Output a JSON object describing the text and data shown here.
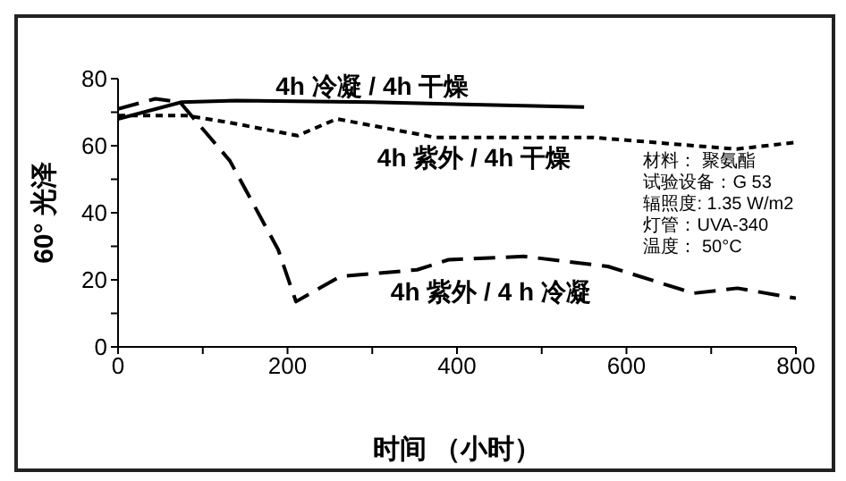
{
  "chart_data": {
    "type": "line",
    "xlabel": "时间 （小时）",
    "ylabel": "60° 光泽",
    "series": [
      {
        "name": "4h 冷凝 / 4h 干燥",
        "color": "#000000",
        "line_style": "solid",
        "x": [
          0,
          75,
          140,
          300,
          550
        ],
        "values": [
          68,
          73,
          73.5,
          73,
          71.5
        ]
      },
      {
        "name": "4h 紫外 / 4h 干燥",
        "color": "#000000",
        "line_style": "dotted",
        "x": [
          0,
          80,
          130,
          212,
          258,
          374,
          560,
          680,
          730,
          800
        ],
        "values": [
          69,
          69,
          67,
          63,
          68,
          62.5,
          62.5,
          60,
          59,
          61
        ]
      },
      {
        "name": "4h 紫外 / 4 h 冷凝",
        "color": "#000000",
        "line_style": "dashed",
        "x": [
          0,
          44,
          73,
          132,
          189,
          210,
          262,
          353,
          390,
          479,
          578,
          679,
          731,
          800
        ],
        "values": [
          71,
          74,
          73,
          55.5,
          29,
          13.5,
          21,
          23,
          26,
          27,
          24,
          16,
          17.5,
          14.5
        ]
      }
    ],
    "annotations": [
      "材料： 聚氨酯",
      "试验设备：G 53",
      "辐照度: 1.35 W/m2",
      "灯管：UVA-340",
      "温度： 50°C"
    ],
    "xlim": [
      0,
      800
    ],
    "xticks": [
      0,
      {
        "value": 100,
        "label": null
      },
      200,
      {
        "value": 300,
        "label": null
      },
      400,
      {
        "value": 500,
        "label": null
      },
      600,
      {
        "value": 700,
        "label": null
      },
      800
    ],
    "ylim": [
      0,
      80
    ],
    "yticks": [
      0,
      {
        "value": 10,
        "label": null
      },
      20,
      {
        "value": 30,
        "label": null
      },
      40,
      {
        "value": 50,
        "label": null
      },
      60,
      {
        "value": 70,
        "label": null
      },
      80
    ],
    "grid": false,
    "marker": "none"
  }
}
